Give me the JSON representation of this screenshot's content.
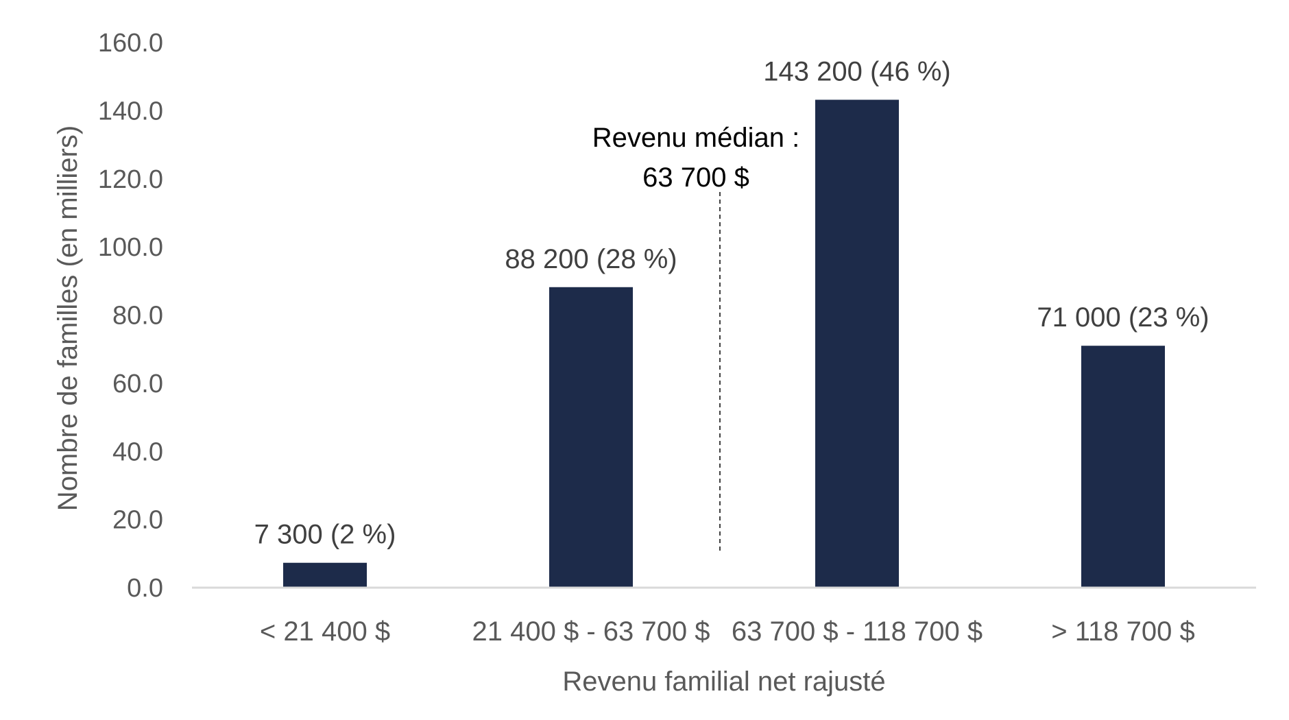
{
  "chart_data": {
    "type": "bar",
    "title": "",
    "xlabel": "Revenu familial net rajusté",
    "ylabel": "Nombre de familles (en milliers)",
    "ylim": [
      0,
      160
    ],
    "yticks": [
      "0.0",
      "20.0",
      "40.0",
      "60.0",
      "80.0",
      "100.0",
      "120.0",
      "140.0",
      "160.0"
    ],
    "categories": [
      "< 21 400 $",
      "21 400 $ - 63 700 $",
      "63 700 $ - 118 700 $",
      "> 118 700 $"
    ],
    "values": [
      7.3,
      88.2,
      143.2,
      71.0
    ],
    "data_labels": [
      "7 300 (2 %)",
      "88 200 (28 %)",
      "143 200 (46 %)",
      "71 000 (23 %)"
    ],
    "bar_color": "#1d2b4a",
    "grid": false,
    "annotation": {
      "line1": "Revenu médian :",
      "line2": "63 700 $",
      "position_between_categories": 1.5
    }
  }
}
